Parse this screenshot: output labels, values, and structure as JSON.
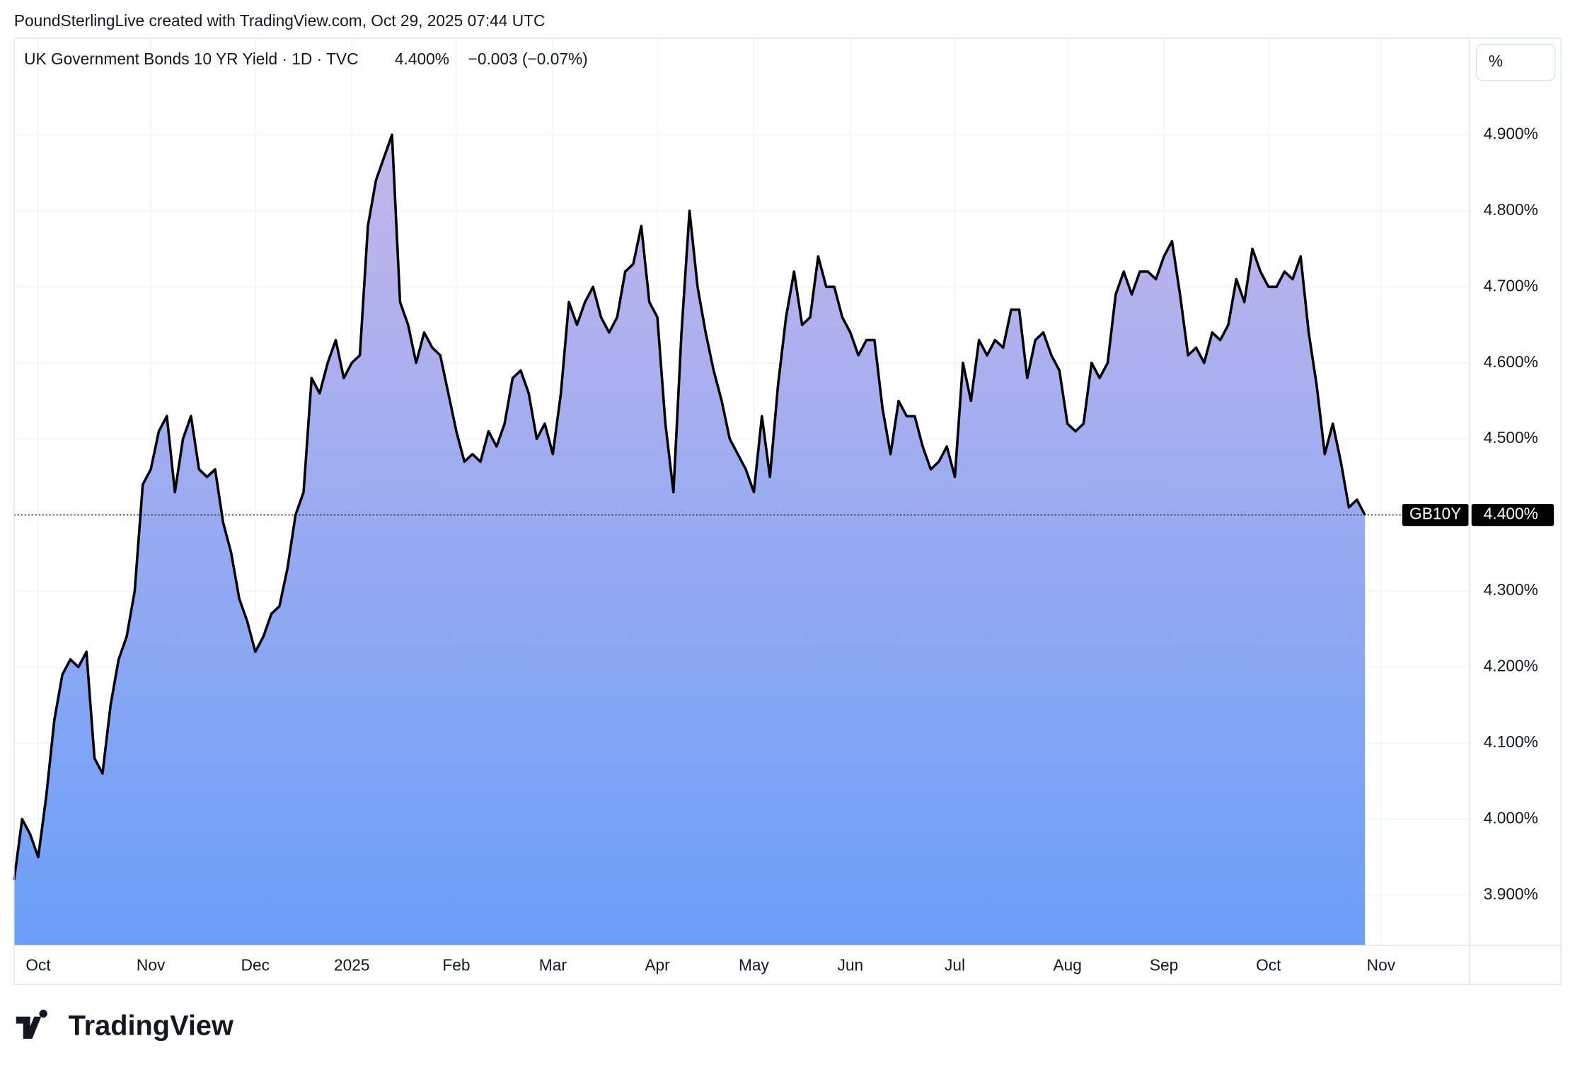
{
  "credit": "PoundSterlingLive created with TradingView.com, Oct 29, 2025 07:44 UTC",
  "header": {
    "symbol": "UK Government Bonds 10 YR Yield · 1D · TVC",
    "price": "4.400%",
    "change": "−0.003 (−0.07%)"
  },
  "unit_button": "%",
  "logo": "TradingView",
  "chart_data": {
    "type": "area",
    "categories": [
      null,
      null,
      null,
      "Oct",
      null,
      null,
      null,
      null,
      null,
      null,
      null,
      null,
      null,
      null,
      null,
      null,
      null,
      "Nov",
      null,
      null,
      null,
      null,
      null,
      null,
      null,
      null,
      null,
      null,
      null,
      null,
      "Dec",
      null,
      null,
      null,
      null,
      null,
      null,
      null,
      null,
      null,
      null,
      null,
      "2025",
      null,
      null,
      null,
      null,
      null,
      null,
      null,
      null,
      null,
      null,
      null,
      null,
      "Feb",
      null,
      null,
      null,
      null,
      null,
      null,
      null,
      null,
      null,
      null,
      null,
      "Mar",
      null,
      null,
      null,
      null,
      null,
      null,
      null,
      null,
      null,
      null,
      null,
      null,
      "Apr",
      null,
      null,
      null,
      null,
      null,
      null,
      null,
      null,
      null,
      null,
      null,
      "May",
      null,
      null,
      null,
      null,
      null,
      null,
      null,
      null,
      null,
      null,
      null,
      "Jun",
      null,
      null,
      null,
      null,
      null,
      null,
      null,
      null,
      null,
      null,
      null,
      null,
      "Jul",
      null,
      null,
      null,
      null,
      null,
      null,
      null,
      null,
      null,
      null,
      null,
      null,
      null,
      "Aug",
      null,
      null,
      null,
      null,
      null,
      null,
      null,
      null,
      null,
      null,
      null,
      "Sep",
      null,
      null,
      null,
      null,
      null,
      null,
      null,
      null,
      null,
      null,
      null,
      null,
      "Oct",
      null,
      null,
      null,
      null,
      null,
      null,
      null,
      null,
      null,
      null,
      null,
      null,
      null,
      "Nov",
      null,
      null,
      null,
      null,
      null,
      null,
      null,
      null,
      null,
      null,
      null
    ],
    "values": [
      3.92,
      4.0,
      3.98,
      3.95,
      4.03,
      4.13,
      4.19,
      4.21,
      4.2,
      4.22,
      4.08,
      4.06,
      4.15,
      4.21,
      4.24,
      4.3,
      4.44,
      4.46,
      4.51,
      4.53,
      4.43,
      4.5,
      4.53,
      4.46,
      4.45,
      4.46,
      4.39,
      4.35,
      4.29,
      4.26,
      4.22,
      4.24,
      4.27,
      4.28,
      4.33,
      4.4,
      4.43,
      4.58,
      4.56,
      4.6,
      4.63,
      4.58,
      4.6,
      4.61,
      4.78,
      4.84,
      4.87,
      4.9,
      4.68,
      4.65,
      4.6,
      4.64,
      4.62,
      4.61,
      4.56,
      4.51,
      4.47,
      4.48,
      4.47,
      4.51,
      4.49,
      4.52,
      4.58,
      4.59,
      4.56,
      4.5,
      4.52,
      4.48,
      4.56,
      4.68,
      4.65,
      4.68,
      4.7,
      4.66,
      4.64,
      4.66,
      4.72,
      4.73,
      4.78,
      4.68,
      4.66,
      4.52,
      4.43,
      4.64,
      4.8,
      4.7,
      4.64,
      4.59,
      4.55,
      4.5,
      4.48,
      4.46,
      4.43,
      4.53,
      4.45,
      4.57,
      4.66,
      4.72,
      4.65,
      4.66,
      4.74,
      4.7,
      4.7,
      4.66,
      4.64,
      4.61,
      4.63,
      4.63,
      4.54,
      4.48,
      4.55,
      4.53,
      4.53,
      4.49,
      4.46,
      4.47,
      4.49,
      4.45,
      4.6,
      4.55,
      4.63,
      4.61,
      4.63,
      4.62,
      4.67,
      4.67,
      4.58,
      4.63,
      4.64,
      4.61,
      4.59,
      4.52,
      4.51,
      4.52,
      4.6,
      4.58,
      4.6,
      4.69,
      4.72,
      4.69,
      4.72,
      4.72,
      4.71,
      4.74,
      4.76,
      4.69,
      4.61,
      4.62,
      4.6,
      4.64,
      4.63,
      4.65,
      4.71,
      4.68,
      4.75,
      4.72,
      4.7,
      4.7,
      4.72,
      4.71,
      4.74,
      4.64,
      4.57,
      4.48,
      4.52,
      4.47,
      4.41,
      4.42,
      4.4,
      null,
      null,
      null,
      null,
      null,
      null,
      null,
      null,
      null,
      null,
      null,
      null,
      null
    ],
    "color": "#000000",
    "fill_top": "#c4b6ea",
    "fill_bottom": "#6a9ef8",
    "ylim": [
      3.834,
      5.027
    ],
    "yticks": [
      {
        "value": 3.9,
        "label": "3.900%"
      },
      {
        "value": 4.0,
        "label": "4.000%"
      },
      {
        "value": 4.1,
        "label": "4.100%"
      },
      {
        "value": 4.2,
        "label": "4.200%"
      },
      {
        "value": 4.3,
        "label": "4.300%"
      },
      {
        "value": 4.4,
        "label": "4.400%"
      },
      {
        "value": 4.5,
        "label": "4.500%"
      },
      {
        "value": 4.6,
        "label": "4.600%"
      },
      {
        "value": 4.7,
        "label": "4.700%"
      },
      {
        "value": 4.8,
        "label": "4.800%"
      },
      {
        "value": 4.9,
        "label": "4.900%"
      }
    ],
    "grid": true,
    "price_tag": {
      "name": "GB10Y",
      "value_label": "4.400%"
    }
  }
}
